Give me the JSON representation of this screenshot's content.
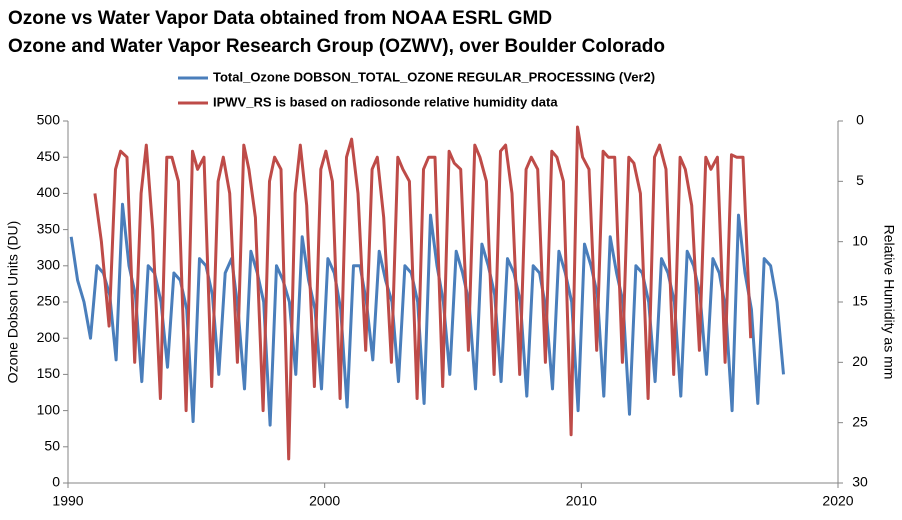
{
  "chart_data": {
    "type": "line",
    "title": [
      "Ozone vs Water Vapor Data obtained from NOAA ESRL GMD",
      "Ozone and Water Vapor Research Group (OZWV), over Boulder Colorado"
    ],
    "ylabel": "Ozone Dobson Units (DU)",
    "y2label": "Relative Humidity as mm",
    "xlim": [
      1990,
      2020
    ],
    "xticks": [
      1990,
      2000,
      2010,
      2020
    ],
    "ylim": [
      0,
      500
    ],
    "yticks": [
      0,
      50,
      100,
      150,
      200,
      250,
      300,
      350,
      400,
      450,
      500
    ],
    "y2lim": [
      0,
      30
    ],
    "y2ticks": [
      0,
      5,
      10,
      15,
      20,
      25,
      30
    ],
    "y2_inverted": true,
    "grid": false,
    "series": [
      {
        "name": "Total_Ozone DOBSON_TOTAL_OZONE REGULAR_PROCESSING (Ver2)",
        "color": "#4a7ebb",
        "axis": "y",
        "x": [
          1990.125,
          1990.375,
          1990.625,
          1990.875,
          1991.125,
          1991.375,
          1991.625,
          1991.875,
          1992.125,
          1992.375,
          1992.625,
          1992.875,
          1993.125,
          1993.375,
          1993.625,
          1993.875,
          1994.125,
          1994.375,
          1994.625,
          1994.875,
          1995.125,
          1995.375,
          1995.625,
          1995.875,
          1996.125,
          1996.375,
          1996.625,
          1996.875,
          1997.125,
          1997.375,
          1997.625,
          1997.875,
          1998.125,
          1998.375,
          1998.625,
          1998.875,
          1999.125,
          1999.375,
          1999.625,
          1999.875,
          2000.125,
          2000.375,
          2000.625,
          2000.875,
          2001.125,
          2001.375,
          2001.625,
          2001.875,
          2002.125,
          2002.375,
          2002.625,
          2002.875,
          2003.125,
          2003.375,
          2003.625,
          2003.875,
          2004.125,
          2004.375,
          2004.625,
          2004.875,
          2005.125,
          2005.375,
          2005.625,
          2005.875,
          2006.125,
          2006.375,
          2006.625,
          2006.875,
          2007.125,
          2007.375,
          2007.625,
          2007.875,
          2008.125,
          2008.375,
          2008.625,
          2008.875,
          2009.125,
          2009.375,
          2009.625,
          2009.875,
          2010.125,
          2010.375,
          2010.625,
          2010.875,
          2011.125,
          2011.375,
          2011.625,
          2011.875,
          2012.125,
          2012.375,
          2012.625,
          2012.875,
          2013.125,
          2013.375,
          2013.625,
          2013.875,
          2014.125,
          2014.375,
          2014.625,
          2014.875,
          2015.125,
          2015.375,
          2015.625,
          2015.875,
          2016.125,
          2016.375,
          2016.625,
          2016.875,
          2017.125,
          2017.375,
          2017.625,
          2017.875
        ],
        "values": [
          340,
          280,
          250,
          200,
          300,
          290,
          260,
          170,
          385,
          300,
          260,
          140,
          300,
          290,
          250,
          160,
          290,
          280,
          240,
          85,
          310,
          300,
          260,
          150,
          290,
          310,
          240,
          130,
          320,
          290,
          250,
          80,
          300,
          280,
          250,
          150,
          340,
          280,
          240,
          130,
          310,
          290,
          240,
          105,
          300,
          300,
          250,
          170,
          320,
          280,
          250,
          140,
          300,
          290,
          250,
          110,
          370,
          300,
          250,
          150,
          320,
          290,
          250,
          130,
          330,
          300,
          260,
          140,
          310,
          290,
          250,
          120,
          300,
          290,
          240,
          130,
          320,
          290,
          250,
          100,
          330,
          300,
          260,
          120,
          340,
          290,
          250,
          95,
          300,
          290,
          250,
          140,
          310,
          290,
          250,
          120,
          320,
          300,
          260,
          150,
          310,
          290,
          240,
          100,
          370,
          290,
          240,
          110,
          310,
          300,
          250,
          150
        ]
      },
      {
        "name": "IPWV_RS is based on radiosonde relative humidity data",
        "color": "#be4b48",
        "axis": "y2",
        "x": [
          1991.05,
          1991.3,
          1991.6,
          1991.85,
          1992.05,
          1992.3,
          1992.6,
          1992.85,
          1993.05,
          1993.3,
          1993.6,
          1993.85,
          1994.05,
          1994.3,
          1994.6,
          1994.85,
          1995.05,
          1995.3,
          1995.6,
          1995.85,
          1996.05,
          1996.3,
          1996.6,
          1996.85,
          1997.05,
          1997.3,
          1997.6,
          1997.85,
          1998.05,
          1998.3,
          1998.6,
          1998.85,
          1999.05,
          1999.3,
          1999.6,
          1999.85,
          2000.05,
          2000.3,
          2000.6,
          2000.85,
          2001.05,
          2001.3,
          2001.6,
          2001.85,
          2002.05,
          2002.3,
          2002.6,
          2002.85,
          2003.05,
          2003.3,
          2003.6,
          2003.85,
          2004.05,
          2004.3,
          2004.6,
          2004.85,
          2005.05,
          2005.3,
          2005.6,
          2005.85,
          2006.05,
          2006.3,
          2006.6,
          2006.85,
          2007.05,
          2007.3,
          2007.6,
          2007.85,
          2008.05,
          2008.3,
          2008.6,
          2008.85,
          2009.05,
          2009.3,
          2009.6,
          2009.85,
          2010.05,
          2010.3,
          2010.6,
          2010.85,
          2011.05,
          2011.3,
          2011.6,
          2011.85,
          2012.05,
          2012.3,
          2012.6,
          2012.85,
          2013.05,
          2013.3,
          2013.6,
          2013.85,
          2014.05,
          2014.3,
          2014.6,
          2014.85,
          2015.05,
          2015.3,
          2015.6,
          2015.85,
          2016.05,
          2016.3,
          2016.6
        ],
        "values": [
          6,
          10,
          17,
          4,
          2.5,
          3,
          20,
          6,
          2,
          9,
          23,
          3,
          3,
          5,
          24,
          2.5,
          4,
          3,
          22,
          5,
          3,
          6,
          20,
          2,
          4,
          8,
          24,
          5,
          3,
          4,
          28,
          6,
          2,
          7,
          22,
          4,
          2.5,
          5,
          23,
          3,
          1.5,
          6,
          19,
          4,
          3,
          8,
          20,
          3,
          4,
          5,
          23,
          4,
          3,
          3,
          22,
          2.5,
          3.5,
          4,
          19,
          2,
          3,
          5,
          21,
          2.5,
          2,
          6,
          21,
          4,
          3,
          4,
          20,
          2.5,
          3,
          5,
          26,
          0.5,
          3,
          4,
          19,
          2.5,
          3,
          3,
          20,
          3,
          3.5,
          6,
          23,
          3,
          2,
          4,
          21,
          3,
          4,
          7,
          19,
          3,
          4,
          3,
          20,
          2.8,
          3,
          3,
          18
        ]
      }
    ]
  }
}
